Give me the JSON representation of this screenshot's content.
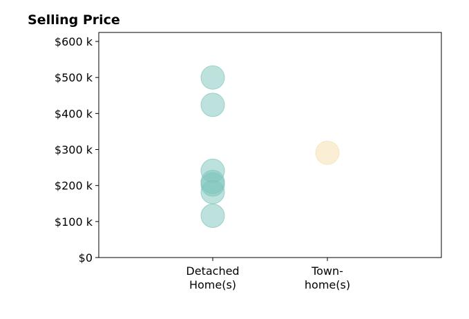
{
  "chart_data": {
    "type": "scatter",
    "title": "Selling Price",
    "xlabel": "",
    "ylabel": "",
    "categories": [
      [
        "Detached",
        "Home(s)"
      ],
      [
        "Town-",
        "home(s)"
      ]
    ],
    "ylim": [
      0,
      625000
    ],
    "y_ticks": [
      {
        "value": 0,
        "label": "$0"
      },
      {
        "value": 100000,
        "label": "$100 k"
      },
      {
        "value": 200000,
        "label": "$200 k"
      },
      {
        "value": 300000,
        "label": "$300 k"
      },
      {
        "value": 400000,
        "label": "$400 k"
      },
      {
        "value": 500000,
        "label": "$500 k"
      },
      {
        "value": 600000,
        "label": "$600 k"
      }
    ],
    "grid": false,
    "legend": "none",
    "series": [
      {
        "category_index": 0,
        "color": "#7cc4bb",
        "values": [
          500000,
          424000,
          241000,
          210000,
          203000,
          182000,
          116000
        ]
      },
      {
        "category_index": 1,
        "color": "#f5dfa9",
        "values": [
          291000
        ]
      }
    ]
  }
}
